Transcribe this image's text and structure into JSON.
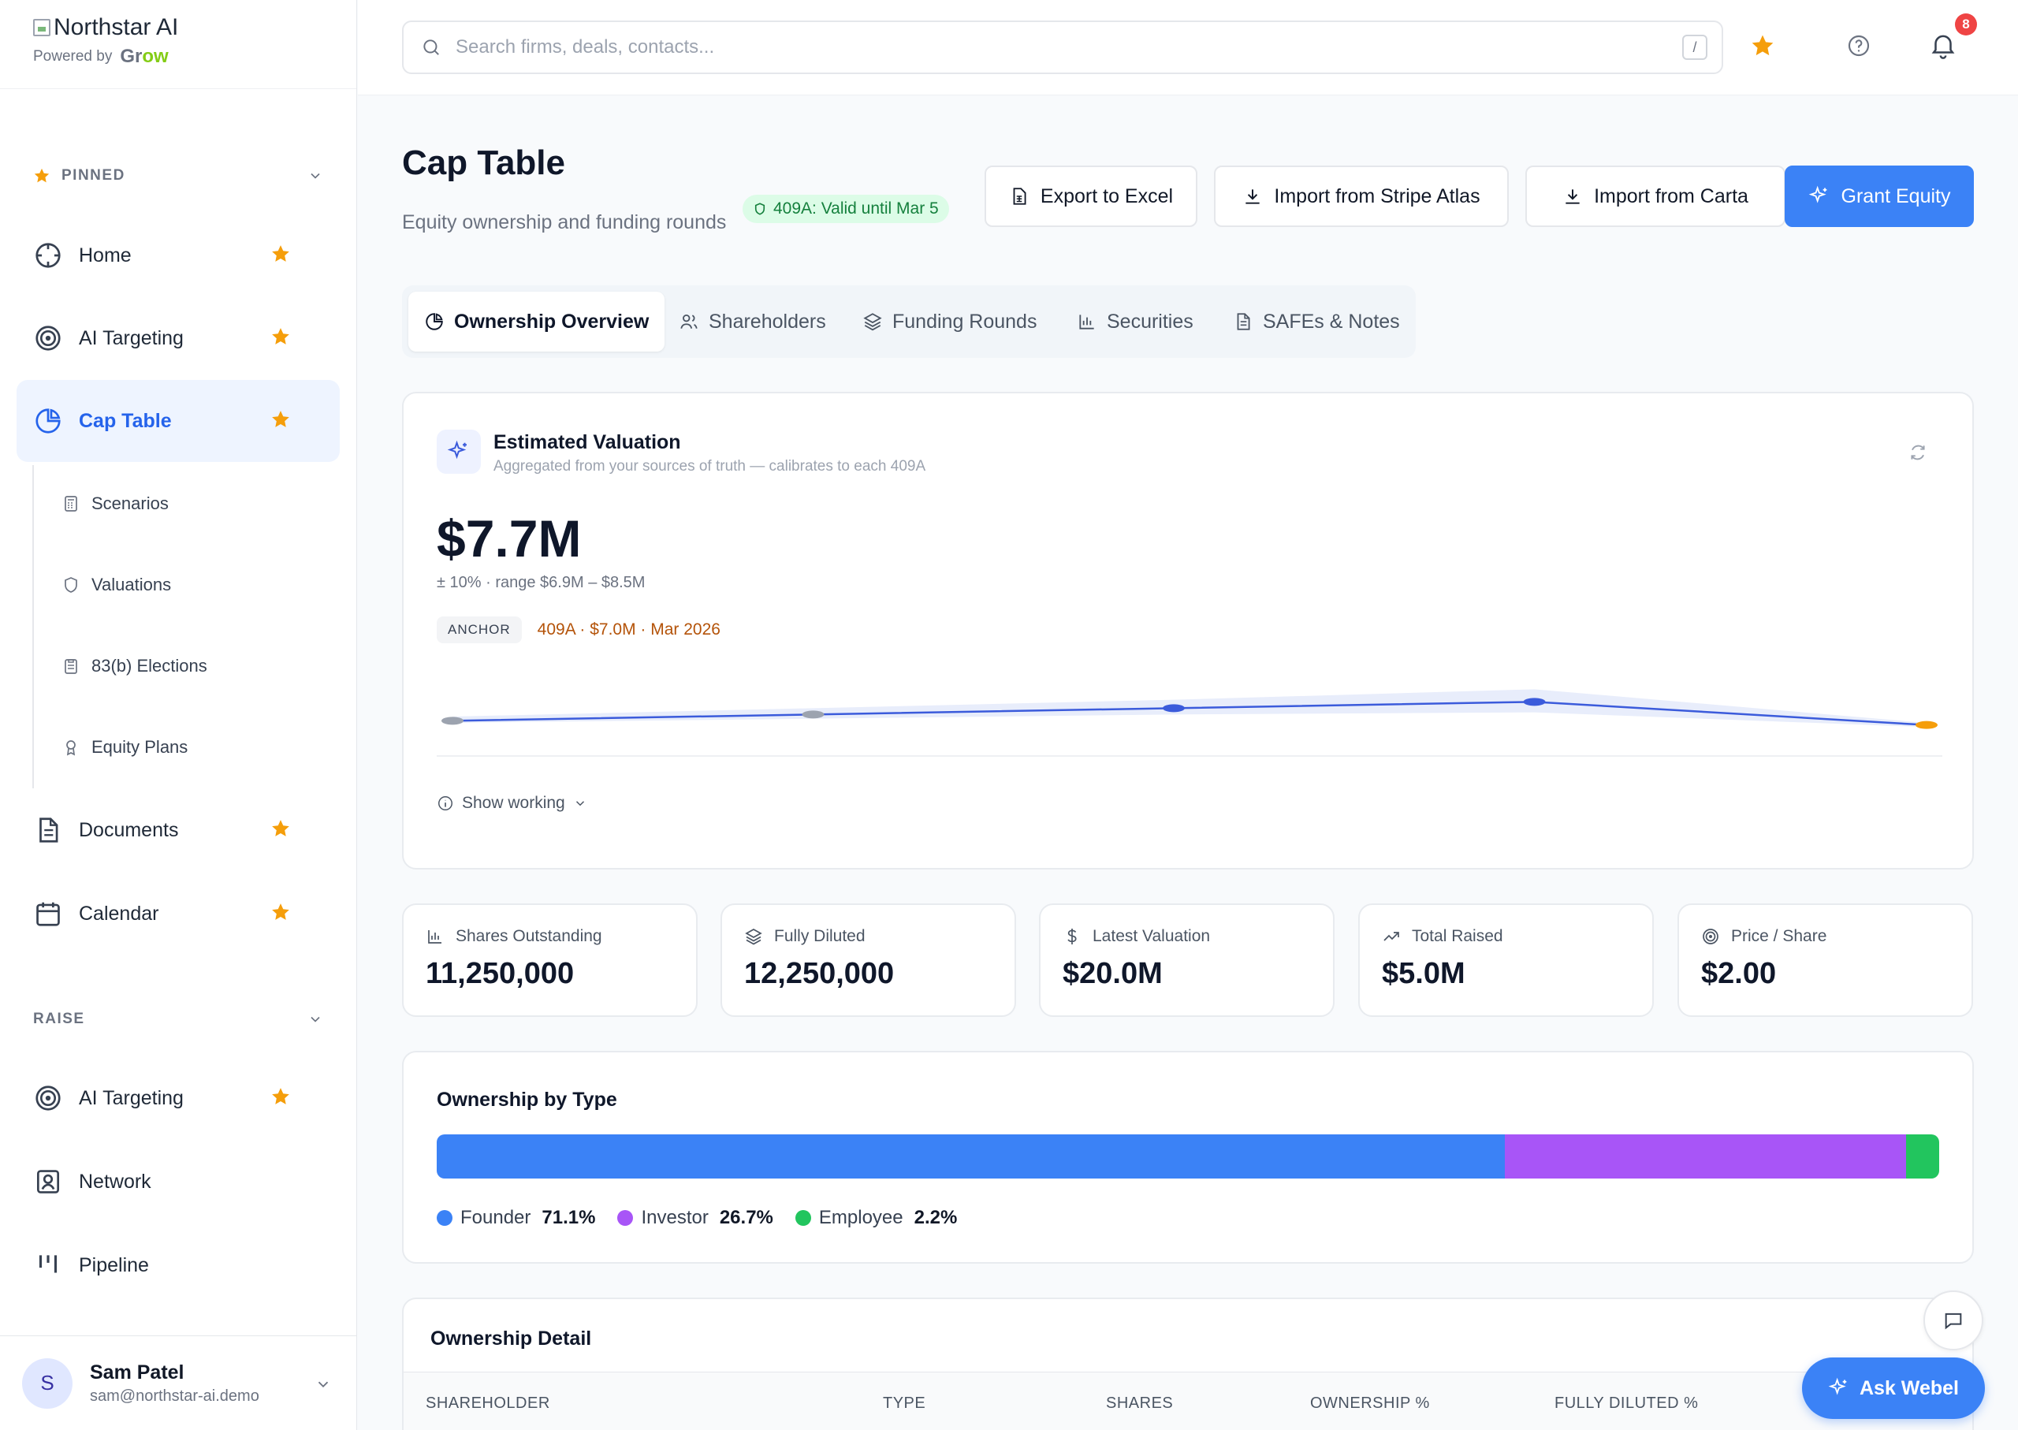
{
  "brand": {
    "name": "Northstar AI",
    "powered_by": "Powered by",
    "partner_a": "Gr",
    "partner_b": "ow"
  },
  "sidebar": {
    "pinned_label": "PINNED",
    "pinned_items": [
      {
        "label": "Home",
        "icon": "compass-icon"
      },
      {
        "label": "AI Targeting",
        "icon": "target-icon"
      },
      {
        "label": "Cap Table",
        "icon": "pie-chart-icon",
        "active": true
      },
      {
        "label": "Documents",
        "icon": "document-icon"
      },
      {
        "label": "Calendar",
        "icon": "calendar-icon"
      }
    ],
    "cap_table_children": [
      {
        "label": "Scenarios",
        "icon": "calculator-icon"
      },
      {
        "label": "Valuations",
        "icon": "shield-icon"
      },
      {
        "label": "83(b) Elections",
        "icon": "clipboard-icon"
      },
      {
        "label": "Equity Plans",
        "icon": "award-icon"
      }
    ],
    "raise_label": "RAISE",
    "raise_items": [
      {
        "label": "AI Targeting",
        "icon": "target-icon"
      },
      {
        "label": "Network",
        "icon": "contact-icon"
      },
      {
        "label": "Pipeline",
        "icon": "pipeline-icon"
      }
    ],
    "user": {
      "initial": "S",
      "name": "Sam Patel",
      "email": "sam@northstar-ai.demo"
    }
  },
  "topbar": {
    "search_placeholder": "Search firms, deals, contacts...",
    "shortcut": "/",
    "notification_count": "8"
  },
  "header": {
    "title": "Cap Table",
    "subtitle": "Equity ownership and funding rounds",
    "badge": "409A: Valid until Mar 5",
    "buttons": {
      "export": "Export to Excel",
      "stripe": "Import from Stripe Atlas",
      "carta": "Import from Carta",
      "grant": "Grant Equity"
    }
  },
  "tabs": [
    "Ownership Overview",
    "Shareholders",
    "Funding Rounds",
    "Securities",
    "SAFEs & Notes"
  ],
  "valuation": {
    "title": "Estimated Valuation",
    "subtitle": "Aggregated from your sources of truth — calibrates to each 409A",
    "amount": "$7.7M",
    "range": "± 10% · range $6.9M – $8.5M",
    "anchor_tag": "ANCHOR",
    "anchor_value": "409A · $7.0M · Mar 2026",
    "show_working": "Show working"
  },
  "chart_data": {
    "type": "line",
    "title": "",
    "xlabel": "",
    "ylabel": "",
    "series": [
      {
        "name": "",
        "values": [
          7.0,
          7.15,
          7.3,
          7.45,
          6.9
        ]
      }
    ],
    "band": {
      "upper": [
        7.1,
        7.3,
        7.5,
        7.75,
        6.95
      ],
      "lower": [
        6.95,
        7.05,
        7.15,
        7.2,
        6.85
      ]
    },
    "ylim": [
      6.5,
      8.0
    ],
    "grid": false,
    "colors": {
      "line": "#3b5bdb",
      "band": "#e8edfb",
      "points": [
        "#9ca3af",
        "#9ca3af",
        "#3b5bdb",
        "#3b5bdb",
        "#f59e0b"
      ]
    }
  },
  "stats": [
    {
      "label": "Shares Outstanding",
      "value": "11,250,000",
      "icon": "bar-chart-icon"
    },
    {
      "label": "Fully Diluted",
      "value": "12,250,000",
      "icon": "layers-icon"
    },
    {
      "label": "Latest Valuation",
      "value": "$20.0M",
      "icon": "dollar-icon"
    },
    {
      "label": "Total Raised",
      "value": "$5.0M",
      "icon": "trending-up-icon"
    },
    {
      "label": "Price / Share",
      "value": "$2.00",
      "icon": "target-icon"
    }
  ],
  "ownership": {
    "title": "Ownership by Type",
    "segments": [
      {
        "label": "Founder",
        "pct_text": "71.1%",
        "value": 71.1,
        "color": "#3b82f6"
      },
      {
        "label": "Investor",
        "pct_text": "26.7%",
        "value": 26.7,
        "color": "#a855f7"
      },
      {
        "label": "Employee",
        "pct_text": "2.2%",
        "value": 2.2,
        "color": "#22c55e"
      }
    ]
  },
  "detail": {
    "title": "Ownership Detail",
    "columns": [
      "SHAREHOLDER",
      "TYPE",
      "SHARES",
      "OWNERSHIP %",
      "FULLY DILUTED %"
    ]
  },
  "assistant": {
    "label": "Ask Webel"
  },
  "colors": {
    "accent": "#3b82f6",
    "star": "#f59e0b",
    "active_bg": "#eef4ff"
  }
}
